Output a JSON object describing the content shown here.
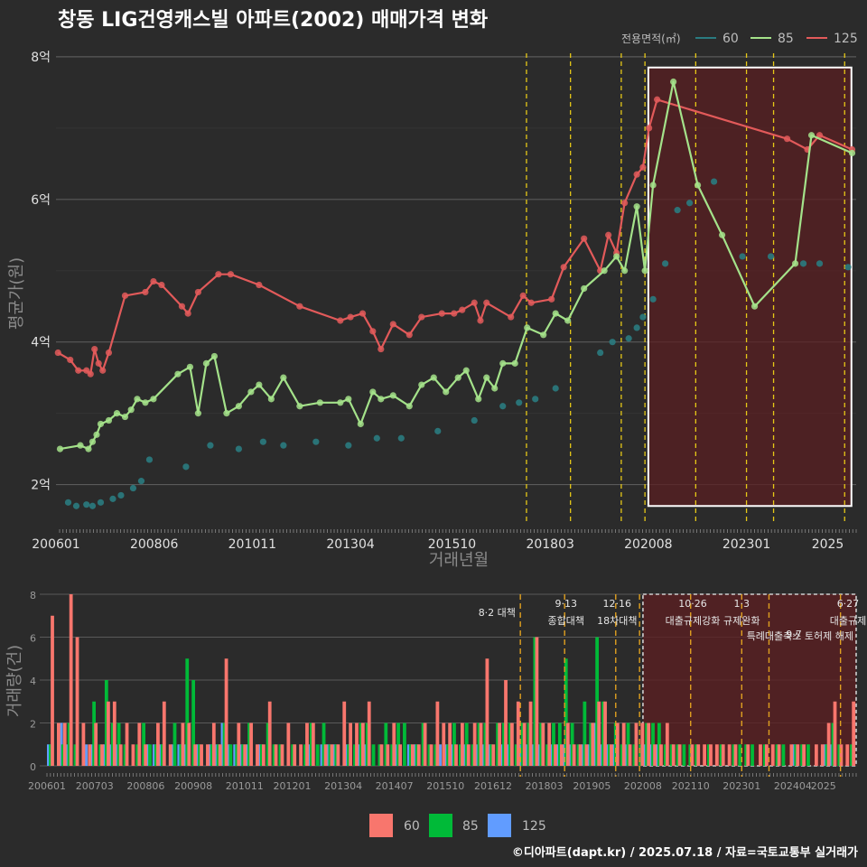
{
  "title": "창동 LIG건영캐스빌 아파트(2002) 매매가격 변화",
  "footer": "©디아파트(dapt.kr) / 2025.07.18 / 자료=국토교통부 실거래가",
  "colors": {
    "s60": "#2a7b80",
    "s85": "#a4e28a",
    "s125": "#e25a5a",
    "bar60": "#f8766d",
    "bar85": "#00ba38",
    "bar125": "#619cff",
    "vline": "#e6c817",
    "highlight": "#5a1f22"
  },
  "chart_data": [
    {
      "type": "line",
      "title": "",
      "xlabel": "거래년월",
      "ylabel": "평균가(원)",
      "x_ticks": [
        "200601",
        "200806",
        "201011",
        "201304",
        "201510",
        "201803",
        "202008",
        "202301",
        "2025"
      ],
      "y_ticks": [
        "2억",
        "4억",
        "6억",
        "8억"
      ],
      "ylim": [
        1.45,
        8.1
      ],
      "legend": {
        "title": "전용면적(㎡)",
        "items": [
          "60",
          "85",
          "125"
        ],
        "position": "top-right"
      },
      "policy_lines": [
        "2017.08",
        "2018.09",
        "2019.12",
        "2020.07",
        "2021.10",
        "2023.01",
        "2023.09",
        "2025.06"
      ],
      "highlight": [
        "2020.08",
        "2025.08"
      ],
      "series": [
        {
          "name": "125",
          "x": [
            2006.05,
            2006.35,
            2006.55,
            2006.75,
            2006.85,
            2006.95,
            2007.05,
            2007.15,
            2007.3,
            2007.7,
            2008.2,
            2008.4,
            2008.6,
            2009.1,
            2009.25,
            2009.5,
            2010.0,
            2010.3,
            2011.0,
            2012.0,
            2013.0,
            2013.25,
            2013.55,
            2013.8,
            2014.0,
            2014.3,
            2014.7,
            2015.0,
            2015.5,
            2015.8,
            2016.0,
            2016.3,
            2016.45,
            2016.6,
            2017.2,
            2017.5,
            2017.7,
            2018.2,
            2018.5,
            2019.0,
            2019.4,
            2019.6,
            2019.8,
            2020.0,
            2020.3,
            2020.45,
            2020.6,
            2020.8,
            2024.0,
            2024.5,
            2024.8,
            2025.6
          ],
          "values": [
            3.85,
            3.75,
            3.6,
            3.6,
            3.55,
            3.9,
            3.7,
            3.6,
            3.85,
            4.65,
            4.7,
            4.85,
            4.8,
            4.5,
            4.4,
            4.7,
            4.95,
            4.95,
            4.8,
            4.5,
            4.3,
            4.35,
            4.4,
            4.15,
            3.9,
            4.25,
            4.1,
            4.35,
            4.4,
            4.4,
            4.45,
            4.55,
            4.3,
            4.55,
            4.35,
            4.65,
            4.55,
            4.6,
            5.05,
            5.45,
            5.0,
            5.5,
            5.25,
            5.95,
            6.35,
            6.45,
            7.0,
            7.4,
            6.85,
            6.7,
            6.9,
            6.7
          ]
        },
        {
          "name": "85",
          "x": [
            2006.1,
            2006.6,
            2006.8,
            2006.9,
            2007.0,
            2007.1,
            2007.3,
            2007.5,
            2007.7,
            2007.85,
            2008.0,
            2008.2,
            2008.4,
            2009.0,
            2009.3,
            2009.5,
            2009.7,
            2009.9,
            2010.2,
            2010.5,
            2010.8,
            2011.0,
            2011.3,
            2011.6,
            2012.0,
            2012.5,
            2013.0,
            2013.2,
            2013.5,
            2013.8,
            2014.0,
            2014.3,
            2014.7,
            2015.0,
            2015.3,
            2015.6,
            2015.9,
            2016.1,
            2016.4,
            2016.6,
            2016.8,
            2017.0,
            2017.3,
            2017.6,
            2018.0,
            2018.3,
            2018.6,
            2019.0,
            2019.5,
            2019.8,
            2020.0,
            2020.3,
            2020.5,
            2020.7,
            2021.2,
            2021.8,
            2022.4,
            2023.2,
            2024.2,
            2024.6,
            2025.6
          ],
          "values": [
            2.5,
            2.55,
            2.5,
            2.6,
            2.7,
            2.85,
            2.9,
            3.0,
            2.95,
            3.05,
            3.2,
            3.15,
            3.2,
            3.55,
            3.65,
            3.0,
            3.7,
            3.8,
            3.0,
            3.1,
            3.3,
            3.4,
            3.2,
            3.5,
            3.1,
            3.15,
            3.15,
            3.2,
            2.85,
            3.3,
            3.2,
            3.25,
            3.1,
            3.4,
            3.5,
            3.3,
            3.5,
            3.6,
            3.2,
            3.5,
            3.35,
            3.7,
            3.7,
            4.2,
            4.1,
            4.4,
            4.3,
            4.75,
            5.0,
            5.2,
            5.0,
            5.9,
            5.0,
            6.2,
            7.65,
            6.2,
            5.5,
            4.5,
            5.1,
            6.9,
            6.65
          ]
        },
        {
          "name": "60",
          "x": [
            2006.3,
            2006.5,
            2006.75,
            2006.9,
            2007.1,
            2007.4,
            2007.6,
            2007.9,
            2008.1,
            2008.3,
            2009.2,
            2009.8,
            2010.5,
            2011.1,
            2011.6,
            2012.4,
            2013.2,
            2013.9,
            2014.5,
            2015.4,
            2016.3,
            2017.0,
            2017.4,
            2017.8,
            2018.3,
            2019.4,
            2019.7,
            2020.1,
            2020.3,
            2020.45,
            2020.7,
            2021.0,
            2021.3,
            2021.6,
            2022.2,
            2022.9,
            2023.6,
            2024.4,
            2024.8,
            2025.5
          ],
          "values": [
            1.75,
            1.7,
            1.72,
            1.7,
            1.75,
            1.8,
            1.85,
            1.95,
            2.05,
            2.35,
            2.25,
            2.55,
            2.5,
            2.6,
            2.55,
            2.6,
            2.55,
            2.65,
            2.65,
            2.75,
            2.9,
            3.1,
            3.15,
            3.2,
            3.35,
            3.85,
            4.0,
            4.05,
            4.2,
            4.35,
            4.6,
            5.1,
            5.85,
            5.95,
            6.25,
            5.2,
            5.2,
            5.1,
            5.1,
            5.05
          ]
        }
      ]
    },
    {
      "type": "bar",
      "xlabel": "",
      "ylabel": "거래량(건)",
      "x_ticks": [
        "200601",
        "200703",
        "200806",
        "200908",
        "201011",
        "201201",
        "201304",
        "201407",
        "201510",
        "201612",
        "201803",
        "201905",
        "202008",
        "202110",
        "202301",
        "202404",
        "2025"
      ],
      "y_ticks": [
        "0",
        "2",
        "4",
        "6",
        "8"
      ],
      "ylim": [
        0,
        8
      ],
      "legend": {
        "items": [
          "60",
          "85",
          "125"
        ],
        "position": "bottom"
      },
      "policy_labels": [
        {
          "date": "8·2",
          "name": "대책",
          "x": 2017.6
        },
        {
          "date": "9·13",
          "name": "종합대책",
          "x": 2018.7
        },
        {
          "date": "12·16",
          "name": "18차대책",
          "x": 2019.95
        },
        {
          "date": "10·26",
          "name": "대출규제강화",
          "x": 2021.8
        },
        {
          "date": "1·3",
          "name": "규제완화",
          "x": 2023.0
        },
        {
          "date": "9·7",
          "name": "특례대출축소 토허제 해제",
          "x": 2023.7
        },
        {
          "date": "6·27",
          "name": "대출규제",
          "x": 2025.6
        }
      ],
      "series": [
        {
          "name": "125",
          "values": [
            1,
            0,
            2,
            1,
            0,
            0,
            1,
            1,
            0,
            1,
            1,
            1,
            0,
            0,
            0,
            0,
            1,
            1,
            1,
            0,
            1,
            1,
            1,
            0,
            1,
            0,
            1,
            1,
            2,
            1,
            1,
            1,
            1,
            0,
            1,
            0,
            0,
            0,
            0,
            0,
            0,
            0,
            1,
            0,
            1,
            1,
            1,
            0,
            1,
            0,
            1,
            1,
            0,
            0,
            0,
            0,
            1,
            0,
            1,
            1,
            0,
            0,
            0,
            1,
            1,
            1,
            0,
            1,
            0,
            1,
            1,
            1,
            0,
            1,
            1,
            0,
            1,
            1,
            1,
            1,
            0,
            1,
            1,
            1,
            1,
            0,
            1,
            1,
            2,
            1,
            1,
            1,
            0,
            1,
            0,
            0,
            1,
            1,
            1,
            0,
            0,
            0,
            0,
            0,
            0,
            0,
            0,
            0,
            0,
            0,
            0,
            0,
            0,
            0,
            0,
            0,
            0,
            0,
            0,
            0,
            1,
            0,
            0,
            0,
            0,
            1,
            1,
            0,
            0,
            0
          ]
        },
        {
          "name": "85",
          "values": [
            1,
            0,
            1,
            2,
            1,
            0,
            0,
            3,
            1,
            4,
            2,
            2,
            1,
            0,
            1,
            2,
            1,
            1,
            1,
            0,
            2,
            1,
            5,
            4,
            1,
            0,
            1,
            1,
            2,
            1,
            1,
            1,
            2,
            0,
            1,
            2,
            1,
            1,
            0,
            1,
            0,
            1,
            2,
            1,
            2,
            1,
            1,
            0,
            1,
            1,
            2,
            2,
            1,
            1,
            2,
            1,
            2,
            2,
            1,
            1,
            2,
            1,
            1,
            0,
            1,
            2,
            1,
            2,
            1,
            2,
            2,
            1,
            2,
            2,
            2,
            1,
            2,
            2,
            6,
            2,
            1,
            2,
            2,
            5,
            2,
            1,
            3,
            2,
            6,
            3,
            1,
            2,
            1,
            2,
            1,
            1,
            2,
            2,
            2,
            1,
            1,
            1,
            1,
            1,
            1,
            0,
            1,
            0,
            1,
            0,
            1,
            1,
            1,
            1,
            0,
            1,
            0,
            1,
            1,
            0,
            1,
            1,
            1,
            0,
            0,
            1,
            2,
            1,
            0,
            1
          ]
        },
        {
          "name": "60",
          "values": [
            7,
            2,
            2,
            8,
            6,
            2,
            1,
            2,
            1,
            3,
            3,
            1,
            2,
            1,
            2,
            1,
            0,
            2,
            3,
            1,
            0,
            2,
            2,
            1,
            1,
            1,
            2,
            1,
            5,
            0,
            2,
            1,
            2,
            1,
            1,
            3,
            1,
            1,
            2,
            1,
            1,
            2,
            2,
            0,
            1,
            1,
            1,
            3,
            2,
            2,
            2,
            3,
            0,
            1,
            1,
            2,
            1,
            0,
            1,
            1,
            2,
            1,
            3,
            2,
            2,
            1,
            2,
            1,
            2,
            2,
            5,
            1,
            2,
            4,
            2,
            3,
            2,
            3,
            6,
            2,
            2,
            1,
            1,
            2,
            1,
            1,
            1,
            2,
            3,
            3,
            1,
            2,
            2,
            1,
            2,
            2,
            2,
            1,
            1,
            2,
            1,
            1,
            0,
            1,
            1,
            1,
            1,
            1,
            1,
            1,
            1,
            0,
            1,
            0,
            1,
            1,
            1,
            1,
            0,
            1,
            1,
            1,
            0,
            1,
            1,
            2,
            3,
            1,
            1,
            3
          ]
        }
      ]
    }
  ]
}
